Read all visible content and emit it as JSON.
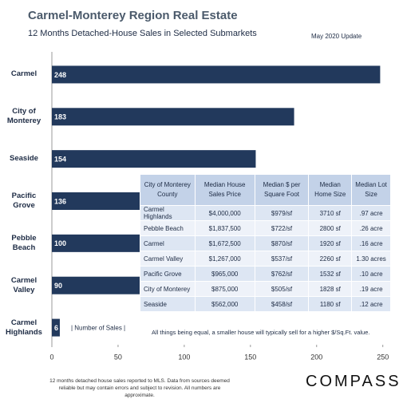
{
  "chart_data": {
    "type": "bar",
    "orientation": "horizontal",
    "title": "Carmel-Monterey Region Real Estate",
    "subtitle": "12 Months  Detached-House  Sales in Selected Submarkets",
    "update": "May 2020 Update",
    "categories": [
      "Carmel",
      "City of Monterey",
      "Seaside",
      "Pacific Grove",
      "Pebble Beach",
      "Carmel Valley",
      "Carmel Highlands"
    ],
    "values": [
      248,
      183,
      154,
      136,
      100,
      90,
      6
    ],
    "color": "#22395c",
    "annotation": "| Number of Sales |",
    "xlim": [
      0,
      255
    ],
    "xticks": [
      0,
      50,
      100,
      150,
      200,
      250
    ],
    "grid": false
  },
  "table": {
    "header": [
      "City of Monterey County",
      "Median House Sales Price",
      "Median $ per Square Foot",
      "Median Home Size",
      "Median Lot Size"
    ],
    "rows": [
      [
        "Carmel Highlands",
        "$4,000,000",
        "$979/sf",
        "3710 sf",
        ".97 acre"
      ],
      [
        "Pebble Beach",
        "$1,837,500",
        "$722/sf",
        "2800 sf",
        ".26 acre"
      ],
      [
        "Carmel",
        "$1,672,500",
        "$870/sf",
        "1920 sf",
        ".16 acre"
      ],
      [
        "Carmel Valley",
        "$1,267,000",
        "$537/sf",
        "2260 sf",
        "1.30 acres"
      ],
      [
        "Pacific Grove",
        "$965,000",
        "$762/sf",
        "1532 sf",
        ".10 acre"
      ],
      [
        "City of Monterey",
        "$875,000",
        "$505/sf",
        "1828 sf",
        ".19 acre"
      ],
      [
        "Seaside",
        "$562,000",
        "$458/sf",
        "1180 sf",
        ".12 acre"
      ]
    ],
    "note": "All things being equal, a smaller house will typically sell for a higher $/Sq.Ft. value."
  },
  "footer": {
    "disclaimer": "12 months detached house sales reported to MLS. Data from sources deemed reliable but may contain errors and subject to revision.  All numbers are approximate.",
    "brand": "COMPASS"
  }
}
